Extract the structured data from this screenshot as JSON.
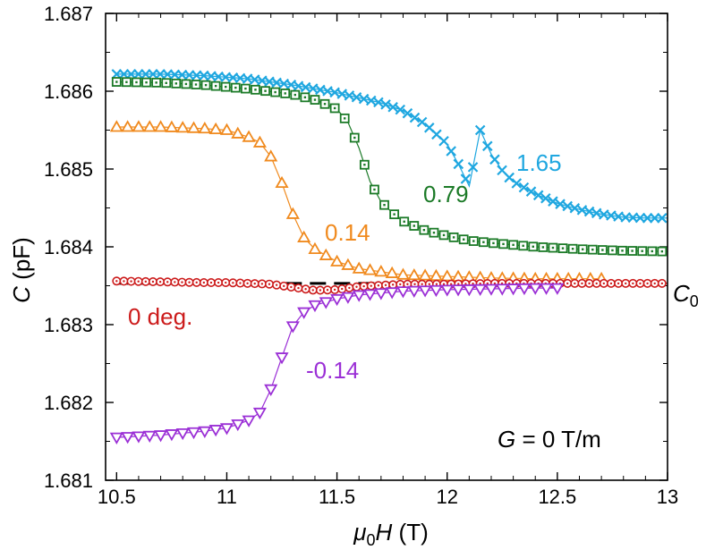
{
  "chart_data": {
    "type": "line",
    "xlabel": {
      "symbol_mu": "μ",
      "sub0": "0",
      "symbol_H": "H",
      "unit": " (T)"
    },
    "ylabel": {
      "symbol": "C",
      "unit": " (pF)"
    },
    "xlim": [
      10.45,
      13.0
    ],
    "ylim": [
      1.681,
      1.687
    ],
    "x_ticks": [
      10.5,
      11,
      11.5,
      12,
      12.5,
      13
    ],
    "x_tick_labels": [
      "10.5",
      "11",
      "11.5",
      "12",
      "12.5",
      "13"
    ],
    "y_ticks": [
      1.681,
      1.682,
      1.683,
      1.684,
      1.685,
      1.686,
      1.687
    ],
    "y_tick_labels": [
      "1.681",
      "1.682",
      "1.683",
      "1.684",
      "1.685",
      "1.686",
      "1.687"
    ],
    "grid": false,
    "reference_line": {
      "label_symbol": "C",
      "label_sub": "0",
      "y": 1.68353,
      "style": "dashed",
      "color": "#000000"
    },
    "annotation": {
      "symbol": "G",
      "text": " = 0 T/m"
    },
    "series": [
      {
        "name": "1.65",
        "color": "#1fa7e0",
        "marker": "x",
        "x": [
          10.5,
          10.7,
          10.9,
          11.1,
          11.3,
          11.5,
          11.7,
          11.8,
          11.9,
          12.0,
          12.05,
          12.1,
          12.15,
          12.2,
          12.25,
          12.3,
          12.4,
          12.5,
          12.6,
          12.7,
          12.8,
          12.9,
          13.0
        ],
        "y": [
          1.68622,
          1.68622,
          1.6862,
          1.68616,
          1.68608,
          1.68598,
          1.68585,
          1.68575,
          1.68558,
          1.68532,
          1.68507,
          1.68478,
          1.6855,
          1.68519,
          1.68498,
          1.68484,
          1.68468,
          1.68456,
          1.68448,
          1.68442,
          1.68438,
          1.68437,
          1.68437
        ]
      },
      {
        "name": "0.79",
        "color": "#1b7a27",
        "marker": "square-dot",
        "x": [
          10.5,
          10.7,
          10.9,
          11.1,
          11.3,
          11.4,
          11.5,
          11.55,
          11.6,
          11.65,
          11.7,
          11.75,
          11.8,
          11.9,
          12.0,
          12.1,
          12.2,
          12.4,
          12.6,
          12.8,
          13.0
        ],
        "y": [
          1.68612,
          1.68611,
          1.68608,
          1.68603,
          1.68596,
          1.68589,
          1.68577,
          1.6856,
          1.68527,
          1.68484,
          1.68458,
          1.68444,
          1.68433,
          1.68421,
          1.68414,
          1.68408,
          1.68405,
          1.684,
          1.68397,
          1.68395,
          1.68394
        ]
      },
      {
        "name": "0.14",
        "color": "#f08a1e",
        "marker": "triangle-up",
        "x": [
          10.5,
          10.7,
          10.9,
          11.0,
          11.1,
          11.15,
          11.2,
          11.25,
          11.3,
          11.35,
          11.4,
          11.5,
          11.6,
          11.8,
          12.0,
          12.2,
          12.4,
          12.6,
          12.7
        ],
        "y": [
          1.68554,
          1.68554,
          1.68552,
          1.6855,
          1.68541,
          1.68534,
          1.68516,
          1.68482,
          1.68442,
          1.68412,
          1.68397,
          1.68381,
          1.68372,
          1.68364,
          1.68362,
          1.6836,
          1.68359,
          1.68359,
          1.68359
        ]
      },
      {
        "name": "0 deg.",
        "color": "#cc1b1b",
        "marker": "circle-dot",
        "x": [
          10.5,
          10.7,
          10.9,
          11.0,
          11.1,
          11.2,
          11.3,
          11.4,
          11.5,
          11.6,
          11.8,
          12.0,
          12.2,
          12.4,
          12.6,
          12.8,
          13.0
        ],
        "y": [
          1.68356,
          1.68355,
          1.68354,
          1.68354,
          1.68353,
          1.68352,
          1.68348,
          1.68344,
          1.68345,
          1.68349,
          1.68352,
          1.68352,
          1.68353,
          1.68353,
          1.68353,
          1.68353,
          1.68353
        ]
      },
      {
        "name": "-0.14",
        "color": "#9b30d6",
        "marker": "triangle-down",
        "x": [
          10.5,
          10.7,
          10.9,
          11.0,
          11.1,
          11.15,
          11.2,
          11.25,
          11.3,
          11.35,
          11.4,
          11.5,
          11.6,
          11.8,
          12.0,
          12.2,
          12.4,
          12.5
        ],
        "y": [
          1.68155,
          1.68158,
          1.68163,
          1.68167,
          1.68177,
          1.68187,
          1.68217,
          1.68258,
          1.68298,
          1.68316,
          1.68325,
          1.68333,
          1.68338,
          1.68343,
          1.68345,
          1.68346,
          1.68347,
          1.68347
        ]
      }
    ],
    "series_labels": [
      "1.65",
      "0.79",
      "0.14",
      "0 deg.",
      "-0.14"
    ]
  }
}
